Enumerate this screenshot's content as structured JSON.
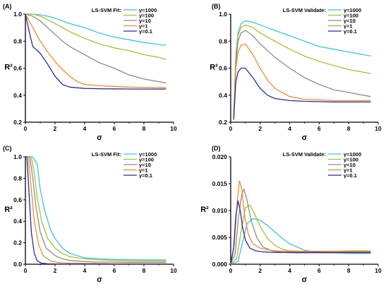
{
  "chart_data": [
    {
      "type": "line",
      "panel_label": "(A)",
      "legend_title": "LS-SVM Fit:",
      "xlabel": "σ",
      "ylabel": "R²",
      "xlim": [
        0,
        10
      ],
      "ylim": [
        0.2,
        1.0
      ],
      "xticks": [
        "0",
        "2",
        "4",
        "6",
        "8",
        "10"
      ],
      "yticks": [
        "0.2",
        "0.4",
        "0.6",
        "0.8",
        "1.0"
      ],
      "legend_position": "top-right",
      "series": [
        {
          "name": "γ=1000",
          "color": "#3bc3dd",
          "x": [
            0,
            0.5,
            1,
            1.5,
            2,
            2.5,
            3,
            4,
            5,
            6,
            7,
            8,
            9,
            9.5
          ],
          "y": [
            1.0,
            1.0,
            0.995,
            0.985,
            0.97,
            0.95,
            0.93,
            0.9,
            0.86,
            0.83,
            0.81,
            0.79,
            0.775,
            0.77
          ]
        },
        {
          "name": "γ=100",
          "color": "#a9bf32",
          "x": [
            0,
            0.5,
            1,
            1.5,
            2,
            2.5,
            3,
            4,
            5,
            6,
            7,
            8,
            9,
            9.5
          ],
          "y": [
            1.0,
            1.0,
            0.985,
            0.96,
            0.93,
            0.9,
            0.87,
            0.82,
            0.78,
            0.75,
            0.73,
            0.7,
            0.68,
            0.665
          ]
        },
        {
          "name": "γ=10",
          "color": "#8c8c8c",
          "x": [
            0,
            0.5,
            1,
            1.5,
            2,
            2.5,
            3,
            4,
            5,
            6,
            7,
            8,
            9,
            9.5
          ],
          "y": [
            1.0,
            0.985,
            0.95,
            0.9,
            0.85,
            0.8,
            0.76,
            0.7,
            0.64,
            0.6,
            0.55,
            0.52,
            0.5,
            0.49
          ]
        },
        {
          "name": "γ=1",
          "color": "#f28a2a",
          "x": [
            0,
            0.5,
            1,
            1.5,
            2,
            2.5,
            3,
            3.5,
            4,
            5,
            6,
            7,
            8,
            9,
            9.5
          ],
          "y": [
            1.0,
            0.9,
            0.8,
            0.72,
            0.65,
            0.59,
            0.54,
            0.5,
            0.48,
            0.47,
            0.465,
            0.46,
            0.457,
            0.455,
            0.455
          ]
        },
        {
          "name": "γ=0.1",
          "color": "#2b2b9e",
          "x": [
            0,
            0.3,
            0.5,
            0.7,
            1,
            1.5,
            2,
            2.5,
            3,
            4,
            5,
            6,
            7,
            8,
            9,
            9.5
          ],
          "y": [
            1.0,
            0.85,
            0.76,
            0.74,
            0.71,
            0.63,
            0.54,
            0.48,
            0.46,
            0.45,
            0.448,
            0.447,
            0.446,
            0.445,
            0.445,
            0.445
          ]
        }
      ]
    },
    {
      "type": "line",
      "panel_label": "(B)",
      "legend_title": "LS-SVM Validate:",
      "xlabel": "σ",
      "ylabel": "R²",
      "xlim": [
        0,
        10
      ],
      "ylim": [
        0.2,
        1.0
      ],
      "xticks": [
        "0",
        "2",
        "4",
        "6",
        "8",
        "10"
      ],
      "yticks": [
        "0.2",
        "0.4",
        "0.6",
        "0.8",
        "1.0"
      ],
      "legend_position": "top-right",
      "series": [
        {
          "name": "γ=1000",
          "color": "#3bc3dd",
          "x": [
            0.2,
            0.35,
            0.5,
            0.7,
            1,
            1.5,
            2,
            3,
            4,
            5,
            6,
            7,
            8,
            9,
            9.5
          ],
          "y": [
            0.22,
            0.7,
            0.86,
            0.93,
            0.95,
            0.94,
            0.92,
            0.88,
            0.84,
            0.8,
            0.76,
            0.74,
            0.72,
            0.7,
            0.69
          ]
        },
        {
          "name": "γ=100",
          "color": "#a9bf32",
          "x": [
            0.2,
            0.35,
            0.5,
            0.7,
            1,
            1.5,
            2,
            3,
            4,
            5,
            6,
            7,
            8,
            9,
            9.5
          ],
          "y": [
            0.22,
            0.68,
            0.84,
            0.9,
            0.92,
            0.9,
            0.86,
            0.8,
            0.74,
            0.69,
            0.65,
            0.62,
            0.59,
            0.57,
            0.56
          ]
        },
        {
          "name": "γ=10",
          "color": "#8c8c8c",
          "x": [
            0.2,
            0.35,
            0.5,
            0.7,
            1,
            1.5,
            2,
            3,
            4,
            5,
            6,
            7,
            8,
            9,
            9.5
          ],
          "y": [
            0.22,
            0.64,
            0.8,
            0.86,
            0.88,
            0.84,
            0.78,
            0.68,
            0.6,
            0.53,
            0.48,
            0.44,
            0.42,
            0.4,
            0.39
          ]
        },
        {
          "name": "γ=1",
          "color": "#f28a2a",
          "x": [
            0.2,
            0.35,
            0.5,
            0.7,
            1,
            1.5,
            2,
            2.5,
            3,
            4,
            5,
            6,
            7,
            8,
            9,
            9.5
          ],
          "y": [
            0.22,
            0.6,
            0.72,
            0.77,
            0.78,
            0.7,
            0.6,
            0.51,
            0.45,
            0.39,
            0.37,
            0.365,
            0.36,
            0.36,
            0.36,
            0.36
          ]
        },
        {
          "name": "γ=0.1",
          "color": "#2b2b9e",
          "x": [
            0.2,
            0.35,
            0.5,
            0.7,
            1,
            1.5,
            2,
            2.5,
            3,
            4,
            5,
            6,
            7,
            8,
            9,
            9.5
          ],
          "y": [
            0.22,
            0.5,
            0.57,
            0.6,
            0.6,
            0.53,
            0.45,
            0.4,
            0.375,
            0.36,
            0.355,
            0.352,
            0.35,
            0.35,
            0.35,
            0.35
          ]
        }
      ]
    },
    {
      "type": "line",
      "panel_label": "(C)",
      "legend_title": "LS-SVM Fit:",
      "xlabel": "σ",
      "ylabel": "R²",
      "xlim": [
        0,
        10
      ],
      "ylim": [
        0.0,
        1.0
      ],
      "xticks": [
        "0",
        "2",
        "4",
        "6",
        "8",
        "10"
      ],
      "yticks": [
        "0.0",
        "0.2",
        "0.4",
        "0.6",
        "0.8",
        "1.0"
      ],
      "legend_position": "top-right",
      "series": [
        {
          "name": "γ=1000",
          "color": "#3bc3dd",
          "x": [
            0,
            0.5,
            0.8,
            1,
            1.3,
            1.7,
            2,
            2.5,
            3,
            4,
            5,
            6,
            7,
            8,
            9,
            9.5
          ],
          "y": [
            1.0,
            1.0,
            0.93,
            0.7,
            0.5,
            0.32,
            0.24,
            0.15,
            0.1,
            0.06,
            0.05,
            0.045,
            0.042,
            0.04,
            0.04,
            0.04
          ]
        },
        {
          "name": "γ=100",
          "color": "#a9bf32",
          "x": [
            0,
            0.4,
            0.6,
            0.8,
            1.1,
            1.5,
            2,
            2.5,
            3,
            4,
            5,
            6,
            7,
            8,
            9,
            9.5
          ],
          "y": [
            1.0,
            1.0,
            0.85,
            0.62,
            0.4,
            0.24,
            0.15,
            0.1,
            0.07,
            0.05,
            0.04,
            0.035,
            0.032,
            0.03,
            0.03,
            0.03
          ]
        },
        {
          "name": "γ=10",
          "color": "#8c8c8c",
          "x": [
            0,
            0.3,
            0.5,
            0.7,
            1,
            1.4,
            2,
            2.5,
            3,
            4,
            5,
            6,
            7,
            8,
            9,
            9.5
          ],
          "y": [
            1.0,
            1.0,
            0.8,
            0.55,
            0.3,
            0.15,
            0.08,
            0.05,
            0.035,
            0.025,
            0.02,
            0.02,
            0.018,
            0.018,
            0.018,
            0.018
          ]
        },
        {
          "name": "γ=1",
          "color": "#f28a2a",
          "x": [
            0,
            0.2,
            0.4,
            0.6,
            0.9,
            1.2,
            1.7,
            2.2,
            3,
            4,
            5,
            6,
            7,
            8,
            9,
            9.5
          ],
          "y": [
            1.0,
            1.0,
            0.7,
            0.4,
            0.18,
            0.08,
            0.03,
            0.015,
            0.01,
            0.008,
            0.007,
            0.006,
            0.006,
            0.005,
            0.005,
            0.005
          ]
        },
        {
          "name": "γ=0.1",
          "color": "#2b2b9e",
          "x": [
            0,
            0.1,
            0.25,
            0.4,
            0.6,
            0.8,
            1.1,
            1.5,
            2,
            3,
            4,
            6,
            8,
            9.5
          ],
          "y": [
            1.0,
            1.0,
            0.65,
            0.3,
            0.1,
            0.03,
            0.01,
            0.004,
            0.002,
            0.001,
            0.001,
            0.0,
            0.0,
            0.0
          ]
        }
      ]
    },
    {
      "type": "line",
      "panel_label": "(D)",
      "legend_title": "LS-SVM Validate:",
      "xlabel": "σ",
      "ylabel": "R²",
      "xlim": [
        0,
        10
      ],
      "ylim": [
        0.0,
        0.02
      ],
      "xticks": [
        "0",
        "2",
        "4",
        "6",
        "8",
        "10"
      ],
      "yticks": [
        "0.000",
        "0.005",
        "0.010",
        "0.015",
        "0.020"
      ],
      "legend_position": "top-right",
      "series": [
        {
          "name": "γ=1000",
          "color": "#3bc3dd",
          "x": [
            0,
            0.5,
            0.8,
            1.1,
            1.5,
            2,
            2.5,
            3,
            3.5,
            4,
            5,
            6,
            7,
            8,
            9,
            9.5
          ],
          "y": [
            0.0,
            0.0005,
            0.004,
            0.0075,
            0.0085,
            0.0082,
            0.0072,
            0.006,
            0.0048,
            0.0038,
            0.0026,
            0.0022,
            0.0021,
            0.002,
            0.002,
            0.002
          ]
        },
        {
          "name": "γ=100",
          "color": "#a9bf32",
          "x": [
            0,
            0.4,
            0.7,
            1,
            1.3,
            1.6,
            2,
            2.5,
            3,
            3.5,
            4,
            5,
            6,
            7,
            8,
            9,
            9.5
          ],
          "y": [
            0.0,
            0.001,
            0.006,
            0.0105,
            0.011,
            0.0095,
            0.007,
            0.0048,
            0.0035,
            0.0028,
            0.0025,
            0.0024,
            0.0024,
            0.0024,
            0.0025,
            0.0025,
            0.0025
          ]
        },
        {
          "name": "γ=10",
          "color": "#8c8c8c",
          "x": [
            0,
            0.3,
            0.5,
            0.75,
            0.9,
            1.1,
            1.4,
            1.8,
            2.2,
            2.8,
            3.5,
            4.5,
            6,
            8,
            9.5
          ],
          "y": [
            0.0,
            0.002,
            0.008,
            0.013,
            0.014,
            0.012,
            0.008,
            0.0048,
            0.0032,
            0.0025,
            0.0022,
            0.0021,
            0.0021,
            0.0021,
            0.0021
          ]
        },
        {
          "name": "γ=1",
          "color": "#f28a2a",
          "x": [
            0,
            0.25,
            0.45,
            0.6,
            0.75,
            0.95,
            1.2,
            1.5,
            2,
            2.5,
            3,
            4,
            5,
            6,
            8,
            9.5
          ],
          "y": [
            0.0,
            0.004,
            0.012,
            0.0155,
            0.014,
            0.009,
            0.0055,
            0.0038,
            0.003,
            0.0027,
            0.0025,
            0.0024,
            0.0024,
            0.0024,
            0.0024,
            0.0024
          ]
        },
        {
          "name": "γ=0.1",
          "color": "#2b2b9e",
          "x": [
            0,
            0.2,
            0.35,
            0.5,
            0.65,
            0.8,
            1,
            1.3,
            1.7,
            2.2,
            3,
            4,
            5,
            6,
            8,
            9.5
          ],
          "y": [
            0.0,
            0.003,
            0.009,
            0.0118,
            0.01,
            0.007,
            0.0045,
            0.003,
            0.0025,
            0.0023,
            0.0022,
            0.0022,
            0.0022,
            0.0022,
            0.0022,
            0.0022
          ]
        }
      ]
    }
  ]
}
